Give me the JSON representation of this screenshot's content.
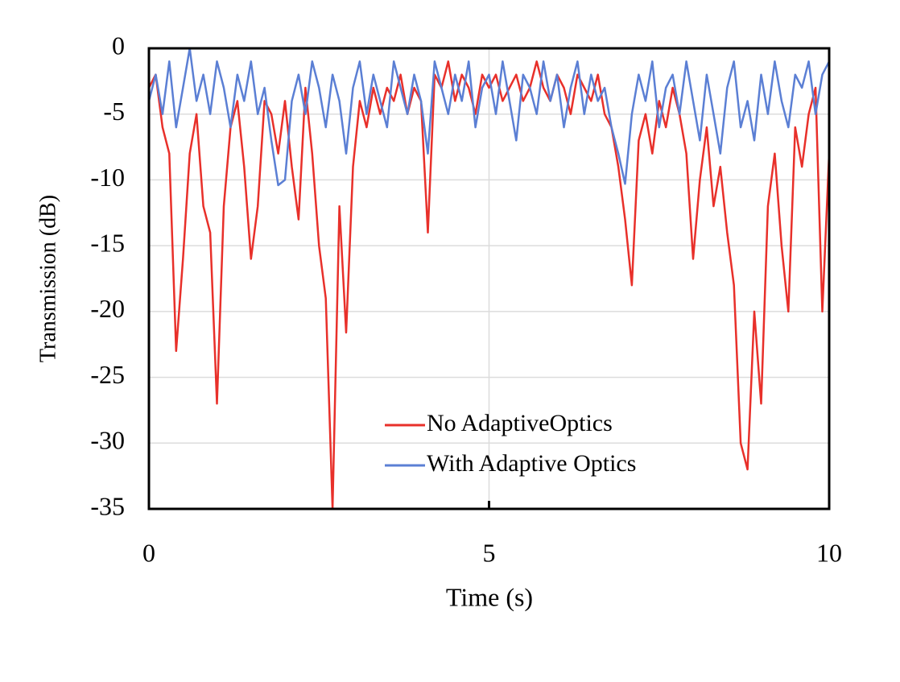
{
  "chart_data": {
    "type": "line",
    "xlabel": "Time (s)",
    "ylabel": "Transmission (dB)",
    "x": [
      0,
      0.1,
      0.2,
      0.3,
      0.4,
      0.5,
      0.6,
      0.7,
      0.8,
      0.9,
      1,
      1.1,
      1.2,
      1.3,
      1.4,
      1.5,
      1.6,
      1.7,
      1.8,
      1.9,
      2,
      2.1,
      2.2,
      2.3,
      2.4,
      2.5,
      2.6,
      2.7,
      2.8,
      2.9,
      3,
      3.1,
      3.2,
      3.3,
      3.4,
      3.5,
      3.6,
      3.7,
      3.8,
      3.9,
      4,
      4.1,
      4.2,
      4.3,
      4.4,
      4.5,
      4.6,
      4.7,
      4.8,
      4.9,
      5,
      5.1,
      5.2,
      5.3,
      5.4,
      5.5,
      5.6,
      5.7,
      5.8,
      5.9,
      6,
      6.1,
      6.2,
      6.3,
      6.4,
      6.5,
      6.6,
      6.7,
      6.8,
      6.9,
      7,
      7.1,
      7.2,
      7.3,
      7.4,
      7.5,
      7.6,
      7.7,
      7.8,
      7.9,
      8,
      8.1,
      8.2,
      8.3,
      8.4,
      8.5,
      8.6,
      8.7,
      8.8,
      8.9,
      9,
      9.1,
      9.2,
      9.3,
      9.4,
      9.5,
      9.6,
      9.7,
      9.8,
      9.9,
      10
    ],
    "series": [
      {
        "name": "No AdaptiveOptics",
        "color": "#e8302a",
        "values": [
          -3,
          -2,
          -6,
          -8,
          -23,
          -16,
          -8,
          -5,
          -12,
          -14,
          -27,
          -12,
          -6,
          -4,
          -9,
          -16,
          -12,
          -4,
          -5,
          -8,
          -4,
          -9,
          -13,
          -3,
          -8,
          -15,
          -19,
          -35,
          -12,
          -21.6,
          -9,
          -4,
          -6,
          -3,
          -5,
          -3,
          -4,
          -2,
          -5,
          -3,
          -4,
          -14,
          -2,
          -3,
          -1,
          -4,
          -2,
          -3,
          -5,
          -2,
          -3,
          -2,
          -4,
          -3,
          -2,
          -4,
          -3,
          -1,
          -3,
          -4,
          -2,
          -3,
          -5,
          -2,
          -3,
          -4,
          -2,
          -5,
          -6,
          -9,
          -13,
          -18,
          -7,
          -5,
          -8,
          -4,
          -6,
          -3,
          -5,
          -8,
          -16,
          -10,
          -6,
          -12,
          -9,
          -14,
          -18,
          -30,
          -32,
          -20,
          -27,
          -12,
          -8,
          -15,
          -20,
          -6,
          -9,
          -5,
          -3,
          -20,
          -8
        ]
      },
      {
        "name": "With Adaptive Optics",
        "color": "#5b7fd4",
        "values": [
          -4,
          -2,
          -5,
          -1,
          -6,
          -3,
          0,
          -4,
          -2,
          -5,
          -1,
          -3,
          -6,
          -2,
          -4,
          -1,
          -5,
          -3,
          -7,
          -10.4,
          -10,
          -4,
          -2,
          -5,
          -1,
          -3,
          -6,
          -2,
          -4,
          -8,
          -3,
          -1,
          -5,
          -2,
          -4,
          -6,
          -1,
          -3,
          -5,
          -2,
          -4,
          -8,
          -1,
          -3,
          -5,
          -2,
          -4,
          -1,
          -6,
          -3,
          -2,
          -5,
          -1,
          -4,
          -7,
          -2,
          -3,
          -5,
          -1,
          -4,
          -2,
          -6,
          -3,
          -1,
          -5,
          -2,
          -4,
          -3,
          -6,
          -8,
          -10.3,
          -5,
          -2,
          -4,
          -1,
          -6,
          -3,
          -2,
          -5,
          -1,
          -4,
          -7,
          -2,
          -5,
          -8,
          -3,
          -1,
          -6,
          -4,
          -7,
          -2,
          -5,
          -1,
          -4,
          -6,
          -2,
          -3,
          -1,
          -5,
          -2,
          -1
        ]
      }
    ],
    "xlim": [
      0,
      10
    ],
    "xticks": [
      0,
      5,
      10
    ],
    "ylim": [
      -35,
      0
    ],
    "yticks": [
      0,
      -5,
      -10,
      -15,
      -20,
      -25,
      -30,
      -35
    ],
    "grid": true
  }
}
